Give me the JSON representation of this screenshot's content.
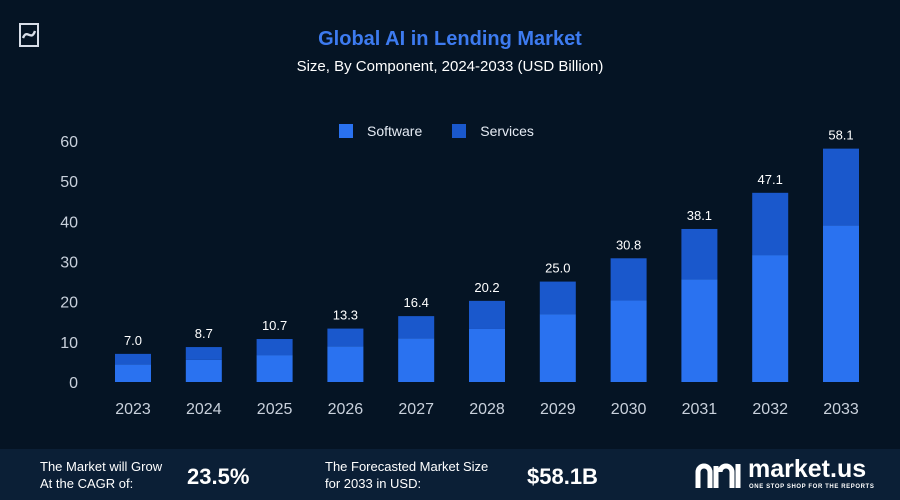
{
  "chart_data": {
    "type": "bar",
    "stacked": true,
    "title": "Global AI in Lending Market",
    "subtitle": "Size, By Component, 2024-2033 (USD Billion)",
    "categories": [
      "2023",
      "2024",
      "2025",
      "2026",
      "2027",
      "2028",
      "2029",
      "2030",
      "2031",
      "2032",
      "2033"
    ],
    "series": [
      {
        "name": "Software",
        "color": "#2a72f0",
        "values": [
          4.4,
          5.5,
          6.7,
          8.9,
          10.9,
          13.2,
          16.9,
          20.3,
          25.6,
          31.6,
          39.0
        ]
      },
      {
        "name": "Services",
        "color": "#1a58cc",
        "values": [
          2.6,
          3.2,
          4.0,
          4.4,
          5.5,
          7.0,
          8.1,
          10.5,
          12.5,
          15.5,
          19.1
        ]
      }
    ],
    "totals": [
      "7.0",
      "8.7",
      "10.7",
      "13.3",
      "16.4",
      "20.2",
      "25.0",
      "30.8",
      "38.1",
      "47.1",
      "58.1"
    ],
    "yticks": [
      "0",
      "10",
      "20",
      "30",
      "40",
      "50",
      "60"
    ],
    "ylim": [
      0,
      60
    ],
    "grid": false,
    "legend_position": "top-center"
  },
  "footer": {
    "cagr_label_line1": "The Market will Grow",
    "cagr_label_line2": "At the CAGR of:",
    "cagr_value": "23.5%",
    "forecast_label_line1": "The Forecasted Market Size",
    "forecast_label_line2": "for 2033 in USD:",
    "forecast_value": "$58.1B"
  },
  "brand": {
    "name": "market.us",
    "tagline": "ONE STOP SHOP FOR THE REPORTS"
  },
  "colors": {
    "background": "#051424",
    "footer_background": "#0b1f36",
    "title": "#3d7bf0"
  }
}
